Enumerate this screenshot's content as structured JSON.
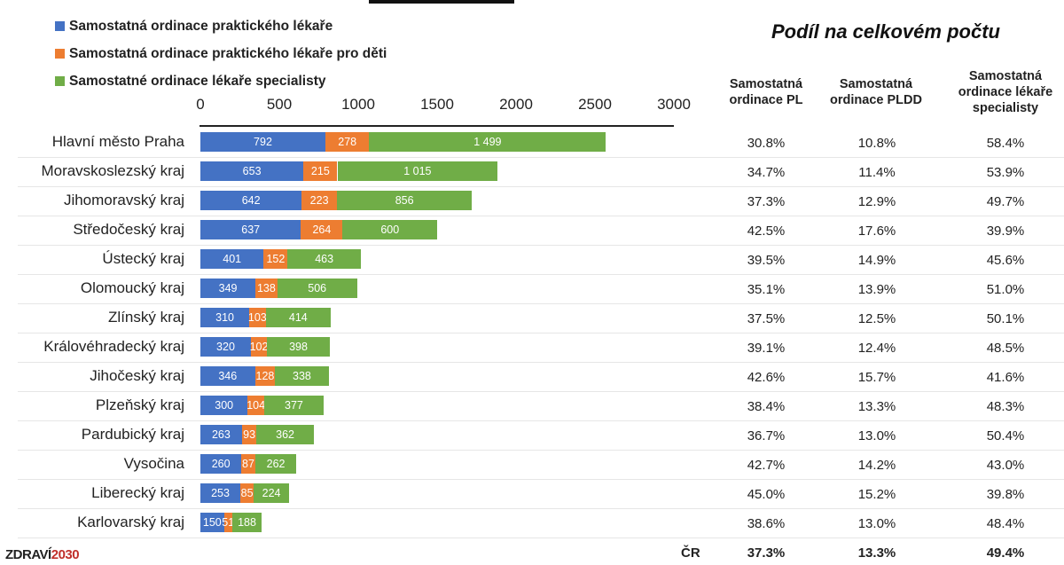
{
  "colors": {
    "pl": "#4472c4",
    "pldd": "#ed7d31",
    "spec": "#70ad47"
  },
  "chart_data": {
    "type": "bar",
    "orientation": "horizontal",
    "stacked": true,
    "categories": [
      "Hlavní město Praha",
      "Moravskoslezský kraj",
      "Jihomoravský kraj",
      "Středočeský kraj",
      "Ústecký kraj",
      "Olomoucký kraj",
      "Zlínský kraj",
      "Královéhradecký kraj",
      "Jihočeský kraj",
      "Plzeňský kraj",
      "Pardubický kraj",
      "Vysočina",
      "Liberecký kraj",
      "Karlovarský kraj"
    ],
    "series": [
      {
        "name": "Samostatná ordinace praktického lékaře",
        "key": "pl",
        "values": [
          792,
          653,
          642,
          637,
          401,
          349,
          310,
          320,
          346,
          300,
          263,
          260,
          253,
          150
        ],
        "labels": [
          "792",
          "653",
          "642",
          "637",
          "401",
          "349",
          "310",
          "320",
          "346",
          "300",
          "263",
          "260",
          "253",
          "150"
        ]
      },
      {
        "name": "Samostatná ordinace praktického lékaře pro děti",
        "key": "pldd",
        "values": [
          278,
          215,
          223,
          264,
          152,
          138,
          103,
          102,
          128,
          104,
          93,
          87,
          85,
          51
        ],
        "labels": [
          "278",
          "215",
          "223",
          "264",
          "152",
          "138",
          "103",
          "102",
          "128",
          "104",
          "93",
          "87",
          "85",
          "51"
        ]
      },
      {
        "name": "Samostatné ordinace lékaře specialisty",
        "key": "spec",
        "values": [
          1499,
          1015,
          856,
          600,
          463,
          506,
          414,
          398,
          338,
          377,
          362,
          262,
          224,
          188
        ],
        "labels": [
          "1 499",
          "1 015",
          "856",
          "600",
          "463",
          "506",
          "414",
          "398",
          "338",
          "377",
          "362",
          "262",
          "224",
          "188"
        ]
      }
    ],
    "xlim": [
      0,
      3000
    ],
    "xticks": [
      "0",
      "500",
      "1000",
      "1500",
      "2000",
      "2500",
      "3000"
    ],
    "legend_position": "top-left"
  },
  "share_table": {
    "title": "Podíl na celkovém počtu",
    "headers": [
      "Samostatná ordinace PL",
      "Samostatná ordinace PLDD",
      "Samostatná ordinace lékaře specialisty"
    ],
    "rows": [
      [
        "30.8%",
        "10.8%",
        "58.4%"
      ],
      [
        "34.7%",
        "11.4%",
        "53.9%"
      ],
      [
        "37.3%",
        "12.9%",
        "49.7%"
      ],
      [
        "42.5%",
        "17.6%",
        "39.9%"
      ],
      [
        "39.5%",
        "14.9%",
        "45.6%"
      ],
      [
        "35.1%",
        "13.9%",
        "51.0%"
      ],
      [
        "37.5%",
        "12.5%",
        "50.1%"
      ],
      [
        "39.1%",
        "12.4%",
        "48.5%"
      ],
      [
        "42.6%",
        "15.7%",
        "41.6%"
      ],
      [
        "38.4%",
        "13.3%",
        "48.3%"
      ],
      [
        "36.7%",
        "13.0%",
        "50.4%"
      ],
      [
        "42.7%",
        "14.2%",
        "43.0%"
      ],
      [
        "45.0%",
        "15.2%",
        "39.8%"
      ],
      [
        "38.6%",
        "13.0%",
        "48.4%"
      ]
    ],
    "total_label": "ČR",
    "total": [
      "37.3%",
      "13.3%",
      "49.4%"
    ]
  },
  "logo": {
    "part1": "ZDRAVÍ",
    "part2": "2030"
  }
}
